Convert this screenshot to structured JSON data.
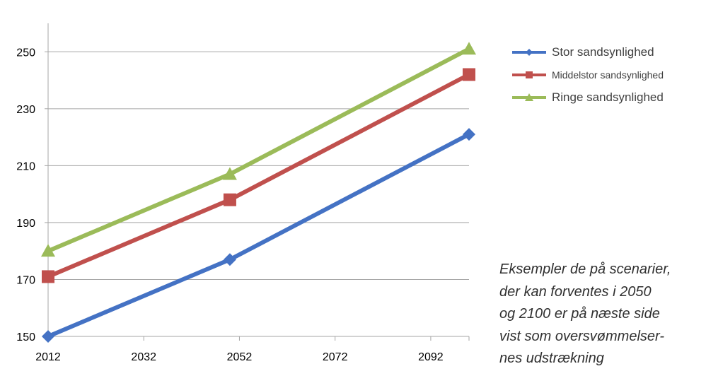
{
  "chart_data": {
    "type": "line",
    "x": [
      2012,
      2050,
      2100
    ],
    "xticks": [
      "2012",
      "2032",
      "2052",
      "2072",
      "2092"
    ],
    "xtick_values": [
      2012,
      2032,
      2052,
      2072,
      2092
    ],
    "yticks": [
      "150",
      "170",
      "190",
      "210",
      "230",
      "250"
    ],
    "ytick_values": [
      150,
      170,
      190,
      210,
      230,
      250
    ],
    "xlim": [
      2012,
      2100
    ],
    "ylim": [
      150,
      260
    ],
    "grid": "horizontal",
    "legend_position": "top-right",
    "title": "",
    "xlabel": "",
    "ylabel": "",
    "series": [
      {
        "name": "Stor sandsynlighed",
        "values": [
          150,
          177,
          221
        ],
        "color": "#4472C4",
        "marker": "diamond"
      },
      {
        "name": "Middelstor sandsynlighed",
        "values": [
          171,
          198,
          242
        ],
        "color": "#C0504D",
        "marker": "square"
      },
      {
        "name": "Ringe sandsynlighed",
        "values": [
          180,
          207,
          251
        ],
        "color": "#9BBB59",
        "marker": "triangle"
      }
    ]
  },
  "legend": {
    "items": [
      {
        "label": "Stor sandsynlighed"
      },
      {
        "label": "Middelstor sandsynlighed"
      },
      {
        "label": "Ringe sandsynlighed"
      }
    ]
  },
  "note": {
    "lines": [
      "Eksempler de på scenarier,",
      "der kan forventes i 2050",
      "og 2100 er på næste side",
      "vist som oversvømmelser-",
      "nes udstrækning"
    ]
  }
}
